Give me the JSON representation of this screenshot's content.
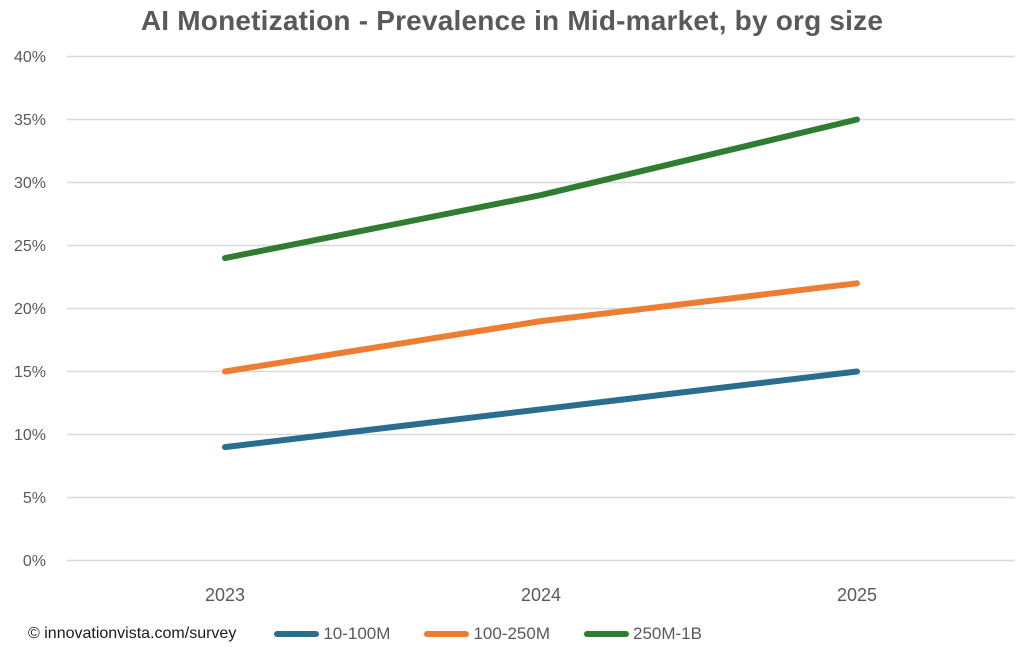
{
  "title": "AI Monetization - Prevalence in Mid-market, by org size",
  "footer": {
    "credit": "© innovationvista.com/survey"
  },
  "colors": {
    "background": "#ffffff",
    "title_text": "#595959",
    "axis_text": "#595959",
    "gridline": "#d9d9d9",
    "credit_text": "#1a1a1a",
    "series_blue": "#2a6d8e",
    "series_orange": "#ed7d31",
    "series_green": "#2e7d32"
  },
  "chart_data": {
    "type": "line",
    "title": "AI Monetization - Prevalence in Mid-market, by org size",
    "categories": [
      "2023",
      "2024",
      "2025"
    ],
    "series": [
      {
        "name": "10-100M",
        "color": "#2a6d8e",
        "values": [
          9,
          12,
          15
        ]
      },
      {
        "name": "100-250M",
        "color": "#ed7d31",
        "values": [
          15,
          19,
          22
        ]
      },
      {
        "name": "250M-1B",
        "color": "#2e7d32",
        "values": [
          24,
          29,
          35
        ]
      }
    ],
    "xlabel": "",
    "ylabel": "",
    "ylim": [
      0,
      40
    ],
    "ytick_step": 5,
    "ytick_labels": [
      "0%",
      "5%",
      "10%",
      "15%",
      "20%",
      "25%",
      "30%",
      "35%",
      "40%"
    ],
    "grid": true,
    "legend_position": "bottom",
    "markers": false
  }
}
